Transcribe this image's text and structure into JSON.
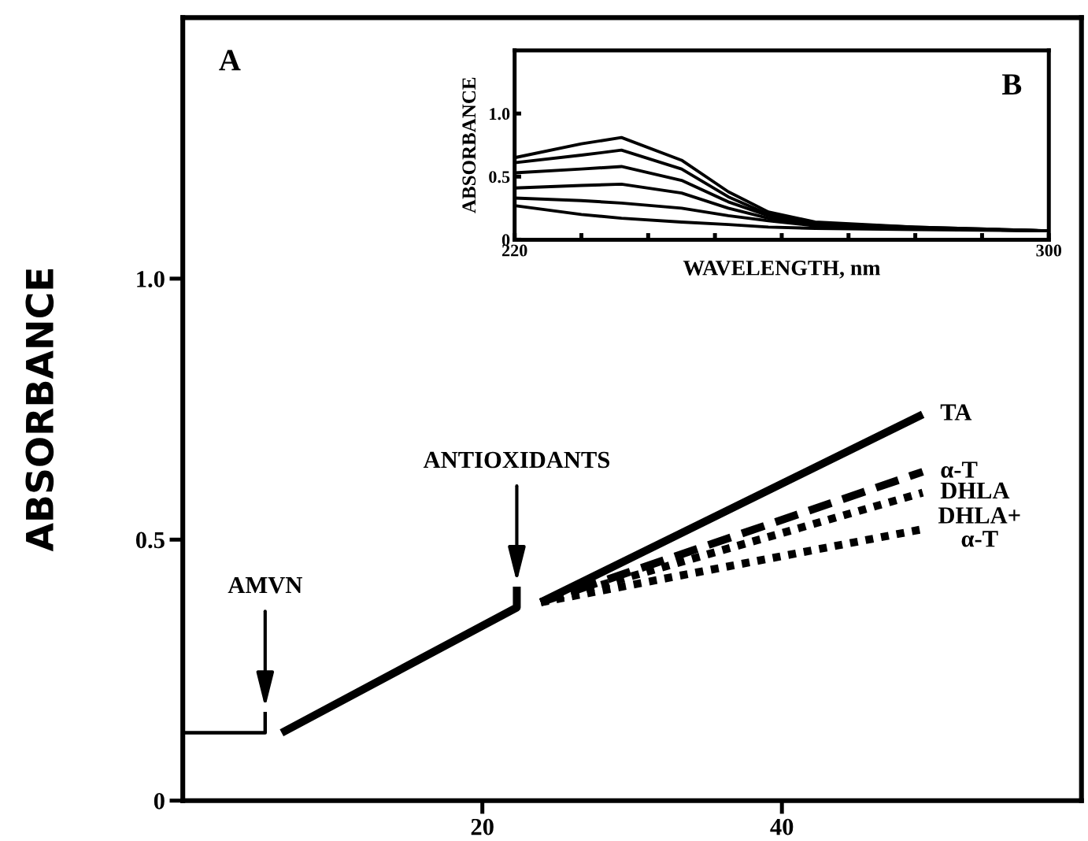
{
  "chart_data": [
    {
      "type": "line",
      "ylabel": "ABSORBANCE",
      "xlim": [
        0,
        60
      ],
      "ylim": [
        0,
        1.5
      ],
      "xticks": [
        20,
        40
      ],
      "yticks": [
        0,
        0.5,
        {
          "value": 1.0,
          "label": "1.0"
        }
      ],
      "grid": false,
      "legend": false,
      "marker": "none",
      "annotations": [
        "A",
        {
          "text": "AMVN",
          "x": 5.5,
          "y": 0.17
        },
        {
          "text": "ANTIOXIDANTS",
          "x": 22.3,
          "y": 0.41
        }
      ],
      "series": [
        {
          "color": "#000000",
          "line_style": "solid",
          "x": [
            0,
            5.5,
            5.5
          ],
          "values": [
            0.13,
            0.13,
            0.17
          ]
        },
        {
          "color": "#000000",
          "line_style": "solid",
          "x": [
            6.6,
            22.3,
            22.3
          ],
          "values": [
            0.13,
            0.37,
            0.41
          ]
        },
        {
          "name": "TA",
          "color": "#000000",
          "line_style": "solid",
          "x": [
            23.9,
            49.4
          ],
          "values": [
            0.38,
            0.74
          ]
        },
        {
          "name": "α-T",
          "color": "#000000",
          "line_style": "dashed",
          "x": [
            23.9,
            49.4
          ],
          "values": [
            0.38,
            0.63
          ]
        },
        {
          "name": "DHLA",
          "color": "#000000",
          "line_style": "dotted",
          "x": [
            23.9,
            49.4
          ],
          "values": [
            0.38,
            0.59
          ]
        },
        {
          "name": "DHLA+\nα-T",
          "color": "#000000",
          "line_style": "dotted",
          "x": [
            23.9,
            49.4
          ],
          "values": [
            0.38,
            0.52
          ]
        }
      ]
    },
    {
      "type": "line",
      "xlabel": "WAVELENGTH, nm",
      "ylabel": "ABSORBANCE",
      "xlim": [
        220,
        300
      ],
      "ylim": [
        0,
        1.5
      ],
      "xticks": [
        220,
        {
          "value": 230,
          "label": null
        },
        {
          "value": 240,
          "label": null
        },
        {
          "value": 250,
          "label": null
        },
        {
          "value": 260,
          "label": null
        },
        {
          "value": 270,
          "label": null
        },
        {
          "value": 280,
          "label": null
        },
        {
          "value": 290,
          "label": null
        },
        300
      ],
      "yticks": [
        0,
        0.5,
        {
          "value": 1.0,
          "label": "1.0"
        }
      ],
      "grid": false,
      "legend": false,
      "marker": "none",
      "annotations": [
        "B"
      ],
      "x": [
        220,
        230,
        236,
        245,
        252,
        258,
        265,
        280,
        300
      ],
      "series": [
        {
          "color": "#000000",
          "values": [
            0.65,
            0.76,
            0.81,
            0.63,
            0.38,
            0.22,
            0.14,
            0.1,
            0.07
          ]
        },
        {
          "color": "#000000",
          "values": [
            0.61,
            0.67,
            0.71,
            0.56,
            0.34,
            0.2,
            0.13,
            0.1,
            0.07
          ]
        },
        {
          "color": "#000000",
          "values": [
            0.53,
            0.56,
            0.58,
            0.47,
            0.3,
            0.19,
            0.13,
            0.09,
            0.07
          ]
        },
        {
          "color": "#000000",
          "values": [
            0.41,
            0.43,
            0.44,
            0.37,
            0.25,
            0.17,
            0.12,
            0.09,
            0.07
          ]
        },
        {
          "color": "#000000",
          "values": [
            0.33,
            0.31,
            0.29,
            0.25,
            0.19,
            0.15,
            0.11,
            0.09,
            0.07
          ]
        },
        {
          "color": "#000000",
          "values": [
            0.27,
            0.2,
            0.17,
            0.14,
            0.12,
            0.1,
            0.09,
            0.08,
            0.07
          ]
        }
      ]
    }
  ]
}
